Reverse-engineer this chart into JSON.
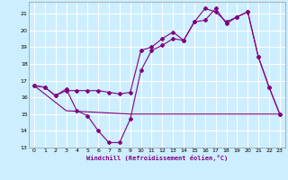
{
  "xlabel": "Windchill (Refroidissement éolien,°C)",
  "bg_color": "#cceeff",
  "grid_color": "#ffffff",
  "line_color": "#800080",
  "xlim": [
    -0.5,
    23.5
  ],
  "ylim": [
    13,
    21.7
  ],
  "yticks": [
    13,
    14,
    15,
    16,
    17,
    18,
    19,
    20,
    21
  ],
  "xticks": [
    0,
    1,
    2,
    3,
    4,
    5,
    6,
    7,
    8,
    9,
    10,
    11,
    12,
    13,
    14,
    15,
    16,
    17,
    18,
    19,
    20,
    21,
    22,
    23
  ],
  "series1_x": [
    0,
    1,
    2,
    3,
    4,
    5,
    6,
    7,
    8,
    9,
    10,
    11,
    12,
    13,
    14,
    15,
    16,
    17,
    18,
    19,
    20,
    21,
    22,
    23
  ],
  "series1_y": [
    16.7,
    16.6,
    16.1,
    16.4,
    16.4,
    16.4,
    16.4,
    16.3,
    16.2,
    16.3,
    18.8,
    19.0,
    19.5,
    19.9,
    19.4,
    20.5,
    21.3,
    21.1,
    20.5,
    20.8,
    21.1,
    18.4,
    16.6,
    15.0
  ],
  "series2_x": [
    0,
    1,
    2,
    3,
    4,
    5,
    6,
    7,
    8,
    9,
    10,
    11,
    12,
    13,
    14,
    15,
    16,
    17,
    18,
    19,
    20,
    21,
    22,
    23
  ],
  "series2_y": [
    16.7,
    16.6,
    16.1,
    16.5,
    15.2,
    14.9,
    14.0,
    13.3,
    13.3,
    14.7,
    17.6,
    18.8,
    19.1,
    19.5,
    19.4,
    20.5,
    20.6,
    21.3,
    20.4,
    20.8,
    21.1,
    18.4,
    16.6,
    15.0
  ],
  "series3_x": [
    0,
    3,
    9,
    14,
    19,
    20,
    23
  ],
  "series3_y": [
    16.7,
    15.2,
    15.0,
    15.0,
    15.0,
    15.0,
    15.0
  ]
}
